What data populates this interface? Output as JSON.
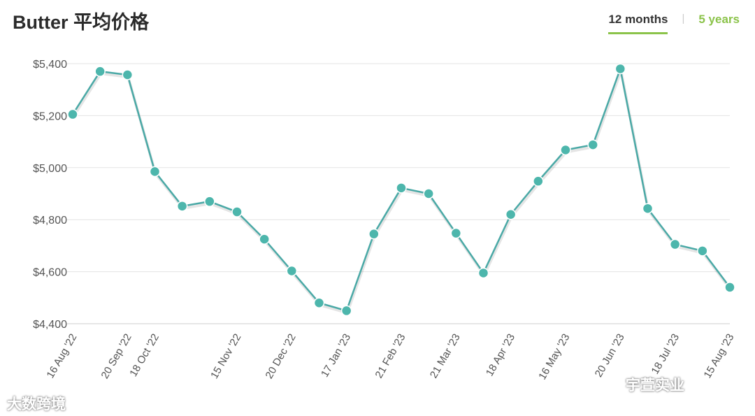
{
  "header": {
    "title": "Butter 平均价格",
    "tabs": [
      {
        "label": "12 months",
        "active": true
      },
      {
        "label": "5 years",
        "active": false
      }
    ],
    "separator": "|"
  },
  "watermarks": {
    "left": "大数跨境",
    "right": "宇萱实业"
  },
  "colors": {
    "line": "#4aa9a6",
    "marker": "#4db6ac",
    "accent": "#8bc34a",
    "grid": "#e3e3e3"
  },
  "chart_data": {
    "type": "line",
    "title": "Butter 平均价格",
    "xlabel": "",
    "ylabel": "",
    "ylim": [
      4400,
      5400
    ],
    "yticks": [
      4400,
      4600,
      4800,
      5000,
      5200,
      5400
    ],
    "ytick_labels": [
      "$4,400",
      "$4,600",
      "$4,800",
      "$5,000",
      "$5,200",
      "$5,400"
    ],
    "grid": true,
    "legend": "none",
    "x_tick_labels": [
      "16 Aug '22",
      "20 Sep '22",
      "18 Oct '22",
      "15 Nov '22",
      "20 Dec '22",
      "17 Jan '23",
      "21 Feb '23",
      "21 Mar '23",
      "18 Apr '23",
      "16 May '23",
      "20 Jun '23",
      "18 Jul '23",
      "15 Aug '23"
    ],
    "x_tick_indices": [
      0,
      2,
      3,
      6,
      8,
      10,
      12,
      14,
      16,
      18,
      20,
      22,
      24
    ],
    "series": [
      {
        "values": [
          5205,
          5370,
          5357,
          4985,
          4852,
          4870,
          4830,
          4725,
          4603,
          4480,
          4450,
          4745,
          4922,
          4900,
          4748,
          4595,
          4820,
          4948,
          5068,
          5088,
          5380,
          4843,
          4705,
          4680,
          4540
        ]
      }
    ]
  }
}
